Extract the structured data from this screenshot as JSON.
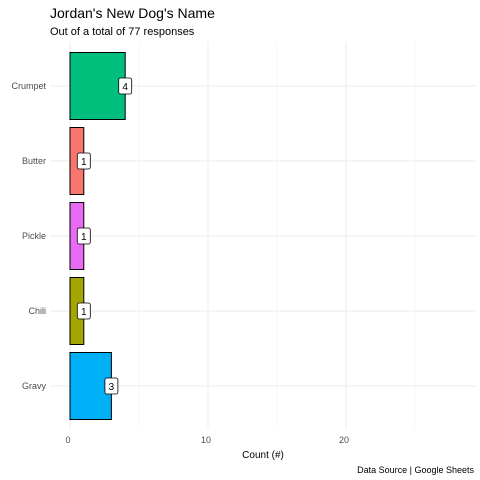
{
  "chart_data": {
    "type": "bar",
    "orientation": "horizontal",
    "title": "Jordan's New Dog's Name",
    "subtitle": "Out of a total of 77 responses",
    "xlabel": "Count (#)",
    "ylabel": "",
    "caption": "Data Source | Google Sheets",
    "categories": [
      "Crumpet",
      "Butter",
      "Pickle",
      "Chili",
      "Gravy"
    ],
    "values": [
      4,
      1,
      1,
      1,
      3
    ],
    "colors": [
      "#00BF7D",
      "#F8766D",
      "#E76BF3",
      "#A3A500",
      "#00B0F6"
    ],
    "xlim": [
      0,
      29
    ],
    "xticks": [
      0,
      10,
      20
    ],
    "grid": true,
    "legend": "none",
    "data_labels": true
  }
}
